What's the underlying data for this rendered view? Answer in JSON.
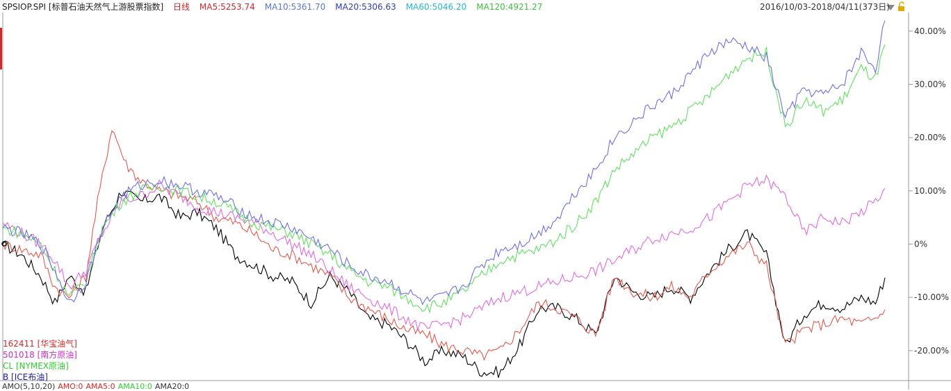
{
  "header": {
    "symbol": "SPSIOP.SPI [标普石油天然气上游股票指数]",
    "period": "日线",
    "ma_labels": [
      {
        "text": "MA5:5253.74",
        "color": "#c8282e"
      },
      {
        "text": "MA10:5361.70",
        "color": "#5b78c4"
      },
      {
        "text": "MA20:5306.63",
        "color": "#2b3fb8"
      },
      {
        "text": "MA60:5046.20",
        "color": "#22b7d6"
      },
      {
        "text": "MA120:4921.27",
        "color": "#3fbf3f"
      }
    ],
    "date_range": "2016/10/03-2018/04/11(373日)"
  },
  "legend": [
    {
      "text": "162411 [华宝油气]",
      "color": "#d42828"
    },
    {
      "text": "501018 [南方原油]",
      "color": "#c632c6"
    },
    {
      "text": "CL [NYMEX原油]",
      "color": "#2ecc2e"
    },
    {
      "text": "B [ICE布油]",
      "color": "#1e1e9e"
    }
  ],
  "bottom_bar": [
    {
      "text": "AMO(5,10,20)",
      "color": "#333333"
    },
    {
      "text": "AMO:0",
      "color": "#d42828"
    },
    {
      "text": "AMA5:0",
      "color": "#d42828"
    },
    {
      "text": "AMA10:0",
      "color": "#2ecc2e"
    },
    {
      "text": "AMA20:0",
      "color": "#333333"
    }
  ],
  "chart_data": {
    "type": "line",
    "x_range": [
      0,
      372
    ],
    "y_range": [
      -25.5,
      43.5
    ],
    "y_ticks": [
      {
        "value": 40,
        "label": "40.00%"
      },
      {
        "value": 30,
        "label": "30.00%"
      },
      {
        "value": 20,
        "label": "20.00%"
      },
      {
        "value": 10,
        "label": "10.00%"
      },
      {
        "value": 0,
        "label": "0%"
      },
      {
        "value": -10,
        "label": "-10.00%"
      },
      {
        "value": -20,
        "label": "-20.00%"
      }
    ],
    "grid": false,
    "series": [
      {
        "name": "SPSIOP.SPI",
        "color": "#000000",
        "x": [
          0,
          8,
          16,
          22,
          28,
          35,
          42,
          50,
          58,
          66,
          75,
          82,
          90,
          98,
          106,
          114,
          122,
          130,
          138,
          146,
          154,
          162,
          170,
          178,
          186,
          194,
          202,
          210,
          218,
          226,
          234,
          242,
          250,
          258,
          266,
          274,
          282,
          290,
          298,
          306,
          314,
          322,
          330,
          338,
          346,
          354,
          362,
          368,
          372
        ],
        "y": [
          0,
          -2,
          -6,
          -11,
          -6,
          -9,
          3,
          10,
          8,
          9,
          5,
          6,
          3,
          -2,
          -4,
          -6,
          -7,
          -11,
          -6,
          -9,
          -14,
          -15,
          -18,
          -22,
          -20,
          -21,
          -24,
          -24,
          -19,
          -12,
          -12,
          -14,
          -17,
          -6,
          -9,
          -10,
          -8,
          -10,
          -5,
          -1,
          2,
          -2,
          -19,
          -13,
          -11,
          -12,
          -10,
          -11,
          -6.3
        ]
      },
      {
        "name": "162411 [华宝油气]",
        "color": "#e05a4e",
        "x": [
          0,
          8,
          16,
          22,
          28,
          35,
          40,
          46,
          52,
          58,
          66,
          75,
          82,
          90,
          98,
          106,
          114,
          122,
          130,
          138,
          146,
          154,
          162,
          170,
          178,
          186,
          194,
          202,
          210,
          218,
          226,
          234,
          242,
          250,
          258,
          266,
          274,
          282,
          290,
          298,
          306,
          314,
          322,
          330,
          338,
          346,
          354,
          362,
          368,
          372
        ],
        "y": [
          0,
          -1,
          -2,
          -8,
          -10,
          -6,
          8,
          22,
          15,
          12,
          10,
          9,
          8,
          5,
          4,
          2,
          -1,
          -2,
          -4,
          -6,
          -10,
          -12,
          -14,
          -16,
          -17,
          -19,
          -20,
          -21,
          -20,
          -16,
          -11,
          -12,
          -14,
          -17,
          -6,
          -9,
          -10,
          -8,
          -10,
          -5,
          -2,
          0,
          -4,
          -19,
          -16,
          -15,
          -14,
          -15,
          -14,
          -12.3
        ]
      },
      {
        "name": "501018 [南方原油]",
        "color": "#e06ae0",
        "x": [
          0,
          8,
          16,
          22,
          28,
          35,
          42,
          50,
          58,
          66,
          75,
          82,
          90,
          98,
          106,
          114,
          122,
          130,
          138,
          146,
          154,
          162,
          170,
          178,
          186,
          194,
          202,
          210,
          218,
          226,
          234,
          242,
          250,
          258,
          266,
          274,
          282,
          290,
          298,
          306,
          314,
          322,
          330,
          338,
          346,
          354,
          362,
          368,
          372
        ],
        "y": [
          4,
          2,
          0,
          -3,
          -8,
          -5,
          2,
          8,
          9,
          11,
          9,
          7,
          6,
          5,
          4,
          2,
          0,
          -2,
          -5,
          -8,
          -10,
          -12,
          -14,
          -16,
          -15,
          -14,
          -12,
          -10,
          -9,
          -8,
          -7,
          -6,
          -5,
          -3,
          -1,
          1,
          2,
          3,
          5,
          8,
          11,
          12,
          9,
          2,
          5,
          4,
          6,
          8,
          10.5
        ]
      },
      {
        "name": "CL [NYMEX原油]",
        "color": "#5fe05f",
        "x": [
          0,
          8,
          16,
          22,
          28,
          35,
          42,
          50,
          58,
          66,
          75,
          82,
          90,
          98,
          106,
          114,
          122,
          130,
          138,
          146,
          154,
          162,
          170,
          178,
          186,
          194,
          202,
          210,
          218,
          226,
          234,
          242,
          250,
          258,
          266,
          274,
          282,
          290,
          298,
          306,
          314,
          322,
          330,
          338,
          346,
          354,
          362,
          368,
          372
        ],
        "y": [
          3,
          2,
          0,
          -5,
          -10,
          -7,
          3,
          8,
          10,
          11,
          10,
          9,
          8,
          6,
          4,
          3,
          2,
          0,
          -2,
          -5,
          -7,
          -8,
          -10,
          -12,
          -11,
          -9,
          -6,
          -3,
          -2,
          -1,
          1,
          4,
          8,
          14,
          17,
          20,
          22,
          25,
          28,
          32,
          35,
          36,
          22,
          27,
          25,
          27,
          33,
          31,
          37.5
        ]
      },
      {
        "name": "B [ICE布油]",
        "color": "#6f6fe0",
        "x": [
          0,
          8,
          16,
          22,
          28,
          35,
          42,
          50,
          58,
          66,
          75,
          82,
          90,
          98,
          106,
          114,
          122,
          130,
          138,
          146,
          154,
          162,
          170,
          178,
          186,
          194,
          202,
          210,
          218,
          226,
          234,
          242,
          250,
          258,
          266,
          274,
          282,
          290,
          298,
          306,
          314,
          322,
          330,
          338,
          346,
          354,
          362,
          368,
          372
        ],
        "y": [
          3,
          2,
          0,
          -5,
          -11,
          -7,
          3,
          9,
          11,
          12,
          11,
          10,
          9,
          7,
          5,
          4,
          3,
          1,
          -1,
          -4,
          -6,
          -7,
          -9,
          -11,
          -10,
          -8,
          -4,
          -1,
          0,
          2,
          5,
          10,
          14,
          20,
          23,
          26,
          28,
          32,
          36,
          38,
          37,
          35,
          24,
          29,
          28,
          30,
          36,
          33,
          42
        ]
      }
    ]
  }
}
